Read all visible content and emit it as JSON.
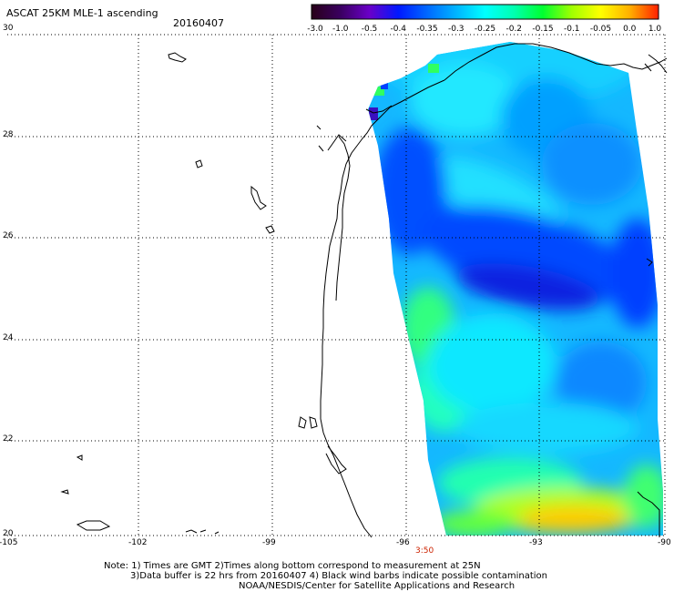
{
  "header": {
    "title": "ASCAT 25KM MLE-1 ascending",
    "date": "20160407"
  },
  "colorbar": {
    "labels": [
      "-3.0",
      "-1.0",
      "-0.5",
      "-0.4",
      "-0.35",
      "-0.3",
      "-0.25",
      "-0.2",
      "-0.15",
      "-0.1",
      "-0.05",
      "0.0",
      "1.0"
    ],
    "colors": [
      "#280018",
      "#3a0060",
      "#6a00c8",
      "#0018ff",
      "#0068ff",
      "#00b4ff",
      "#00ffff",
      "#00ffb0",
      "#00ff30",
      "#a0ff00",
      "#ffff00",
      "#ffb000",
      "#ff2000"
    ]
  },
  "axes": {
    "lon_labels": [
      "-105",
      "-102",
      "-99",
      "-96",
      "-93",
      "-90"
    ],
    "lat_labels": [
      "30",
      "28",
      "26",
      "24",
      "22",
      "20"
    ]
  },
  "pass_time": "3:50",
  "notes": {
    "line1": "Note: 1) Times are GMT 2)Times along bottom correspond to measurement at 25N",
    "line2": "3)Data buffer is 22 hrs from 20160407 4) Black wind barbs indicate possible contamination",
    "line3": "NOAA/NESDIS/Center for Satellite Applications and Research"
  }
}
